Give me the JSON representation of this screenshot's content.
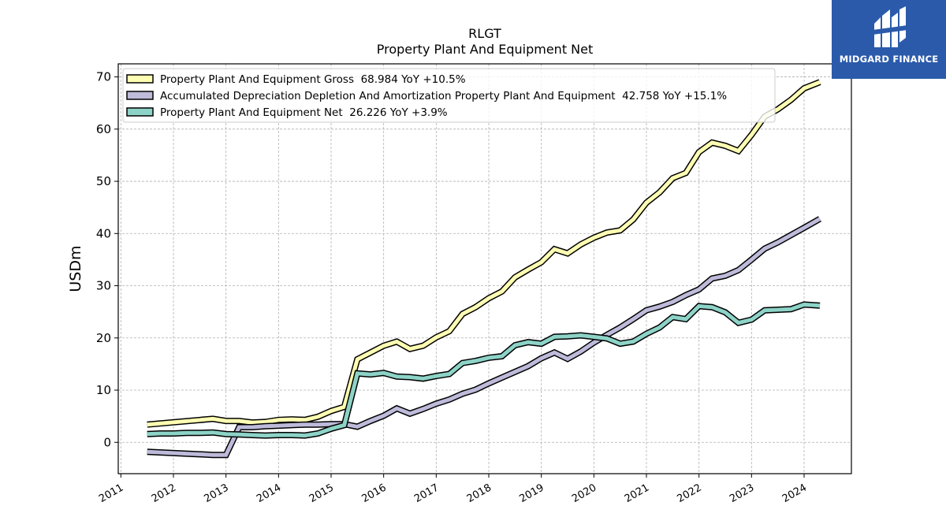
{
  "chart_data": {
    "type": "line",
    "title": "RLGT",
    "subtitle": "Property Plant And Equipment Net",
    "xlabel": "",
    "ylabel": "USDm",
    "x_ticks": [
      "2011",
      "2012",
      "2013",
      "2014",
      "2015",
      "2016",
      "2017",
      "2018",
      "2019",
      "2020",
      "2021",
      "2022",
      "2023",
      "2024"
    ],
    "y_ticks": [
      0,
      10,
      20,
      30,
      40,
      50,
      60,
      70
    ],
    "xlim": [
      2010.95,
      2024.9
    ],
    "ylim": [
      -6,
      72.5
    ],
    "grid": true,
    "legend_position": "top-left",
    "series": [
      {
        "name": "Property Plant And Equipment Gross  68.984 YoY +10.5%",
        "color": "#ffffb3",
        "x": [
          2011.5,
          2012.75,
          2013.0,
          2013.25,
          2013.5,
          2013.75,
          2014.0,
          2014.25,
          2014.5,
          2014.75,
          2015.0,
          2015.25,
          2015.5,
          2015.75,
          2016.0,
          2016.25,
          2016.5,
          2016.75,
          2017.0,
          2017.25,
          2017.5,
          2017.75,
          2018.0,
          2018.25,
          2018.5,
          2018.75,
          2019.0,
          2019.25,
          2019.5,
          2019.75,
          2020.0,
          2020.25,
          2020.5,
          2020.75,
          2021.0,
          2021.25,
          2021.5,
          2021.75,
          2022.0,
          2022.25,
          2022.5,
          2022.75,
          2023.0,
          2023.25,
          2023.5,
          2023.75,
          2024.0,
          2024.3
        ],
        "values": [
          3.4,
          4.5,
          4.1,
          4.1,
          3.8,
          3.9,
          4.3,
          4.4,
          4.3,
          4.9,
          6.0,
          6.8,
          15.9,
          17.2,
          18.5,
          19.3,
          17.9,
          18.5,
          20.1,
          21.3,
          24.6,
          25.9,
          27.6,
          28.9,
          31.6,
          33.1,
          34.5,
          37.0,
          36.2,
          37.9,
          39.2,
          40.2,
          40.6,
          42.7,
          45.9,
          47.9,
          50.6,
          51.6,
          55.6,
          57.4,
          56.8,
          55.8,
          58.9,
          62.4,
          63.8,
          65.6,
          67.8,
          69.0
        ]
      },
      {
        "name": "Accumulated Depreciation Depletion And Amortization Property Plant And Equipment  42.758 YoY +15.1%",
        "color": "#bebada",
        "x": [
          2011.5,
          2012.75,
          2013.0,
          2013.25,
          2013.5,
          2013.75,
          2014.0,
          2014.25,
          2014.5,
          2014.75,
          2015.0,
          2015.25,
          2015.5,
          2015.75,
          2016.0,
          2016.25,
          2016.5,
          2016.75,
          2017.0,
          2017.25,
          2017.5,
          2017.75,
          2018.0,
          2018.25,
          2018.5,
          2018.75,
          2019.0,
          2019.25,
          2019.5,
          2019.75,
          2020.0,
          2020.25,
          2020.5,
          2020.75,
          2021.0,
          2021.25,
          2021.5,
          2021.75,
          2022.0,
          2022.25,
          2022.5,
          2022.75,
          2023.0,
          2023.25,
          2023.5,
          2023.75,
          2024.0,
          2024.3
        ],
        "values": [
          -1.8,
          -2.4,
          -2.4,
          2.9,
          2.9,
          3.1,
          3.2,
          3.3,
          3.4,
          3.4,
          3.5,
          3.5,
          3.0,
          4.1,
          5.1,
          6.5,
          5.5,
          6.4,
          7.4,
          8.2,
          9.3,
          10.1,
          11.3,
          12.4,
          13.5,
          14.6,
          16.1,
          17.2,
          16.0,
          17.4,
          19.1,
          20.6,
          22.0,
          23.6,
          25.3,
          26.0,
          26.9,
          28.2,
          29.3,
          31.4,
          31.9,
          33.0,
          35.0,
          37.1,
          38.3,
          39.7,
          41.1,
          42.8
        ]
      },
      {
        "name": "Property Plant And Equipment Net  26.226 YoY +3.9%",
        "color": "#8dd3c7",
        "x": [
          2011.5,
          2011.75,
          2012.0,
          2012.25,
          2012.5,
          2012.75,
          2013.0,
          2013.25,
          2013.5,
          2013.75,
          2014.0,
          2014.25,
          2014.5,
          2014.75,
          2015.0,
          2015.25,
          2015.5,
          2015.75,
          2016.0,
          2016.25,
          2016.5,
          2016.75,
          2017.0,
          2017.25,
          2017.5,
          2017.75,
          2018.0,
          2018.25,
          2018.5,
          2018.75,
          2019.0,
          2019.25,
          2019.5,
          2019.75,
          2020.0,
          2020.25,
          2020.5,
          2020.75,
          2021.0,
          2021.25,
          2021.5,
          2021.75,
          2022.0,
          2022.25,
          2022.5,
          2022.75,
          2023.0,
          2023.25,
          2023.5,
          2023.75,
          2024.0,
          2024.3
        ],
        "values": [
          1.6,
          1.7,
          1.7,
          1.8,
          1.8,
          1.9,
          1.6,
          1.5,
          1.4,
          1.3,
          1.4,
          1.4,
          1.3,
          1.7,
          2.6,
          3.3,
          13.2,
          13.0,
          13.3,
          12.6,
          12.5,
          12.2,
          12.7,
          13.1,
          15.2,
          15.6,
          16.2,
          16.5,
          18.6,
          19.2,
          18.9,
          20.2,
          20.3,
          20.5,
          20.2,
          19.9,
          18.9,
          19.3,
          20.8,
          22.0,
          24.0,
          23.6,
          26.1,
          25.9,
          24.9,
          22.9,
          23.5,
          25.3,
          25.4,
          25.5,
          26.4,
          26.2
        ]
      }
    ]
  },
  "logo": {
    "text": "MIDGARD FINANCE",
    "background": "#2b5aab"
  }
}
